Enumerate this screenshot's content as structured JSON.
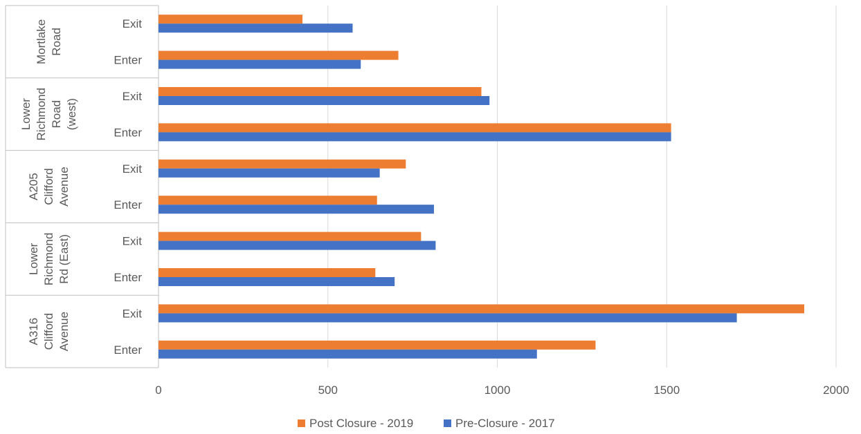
{
  "chart_data": {
    "type": "bar",
    "orientation": "horizontal",
    "groups": [
      "Mortlake Road",
      "Lower Richmond Road (west)",
      "A205 Clifford Avenue",
      "Lower Richmond Rd (East)",
      "A316 Clifford Avenue"
    ],
    "group_label_lines": [
      [
        "Mortlake",
        "Road"
      ],
      [
        "Lower",
        "Richmond",
        "Road",
        "(west)"
      ],
      [
        "A205",
        "Clifford",
        "Avenue"
      ],
      [
        "Lower",
        "Richmond",
        "Rd (East)"
      ],
      [
        "A316",
        "Clifford",
        "Avenue"
      ]
    ],
    "subcategories": [
      "Exit",
      "Enter"
    ],
    "series": [
      {
        "name": "Post Closure - 2019",
        "color": "#ED7D31",
        "values": [
          [
            425,
            708
          ],
          [
            953,
            1513
          ],
          [
            730,
            645
          ],
          [
            775,
            640
          ],
          [
            1906,
            1290
          ]
        ]
      },
      {
        "name": "Pre-Closure - 2017",
        "color": "#4472C4",
        "values": [
          [
            573,
            597
          ],
          [
            977,
            1513
          ],
          [
            653,
            813
          ],
          [
            818,
            697
          ],
          [
            1707,
            1117
          ]
        ]
      }
    ],
    "xlim": [
      0,
      2000
    ],
    "xticks": [
      0,
      500,
      1000,
      1500,
      2000
    ],
    "xlabel": "",
    "ylabel": "",
    "title": "",
    "grid": true,
    "legend_position": "bottom"
  }
}
